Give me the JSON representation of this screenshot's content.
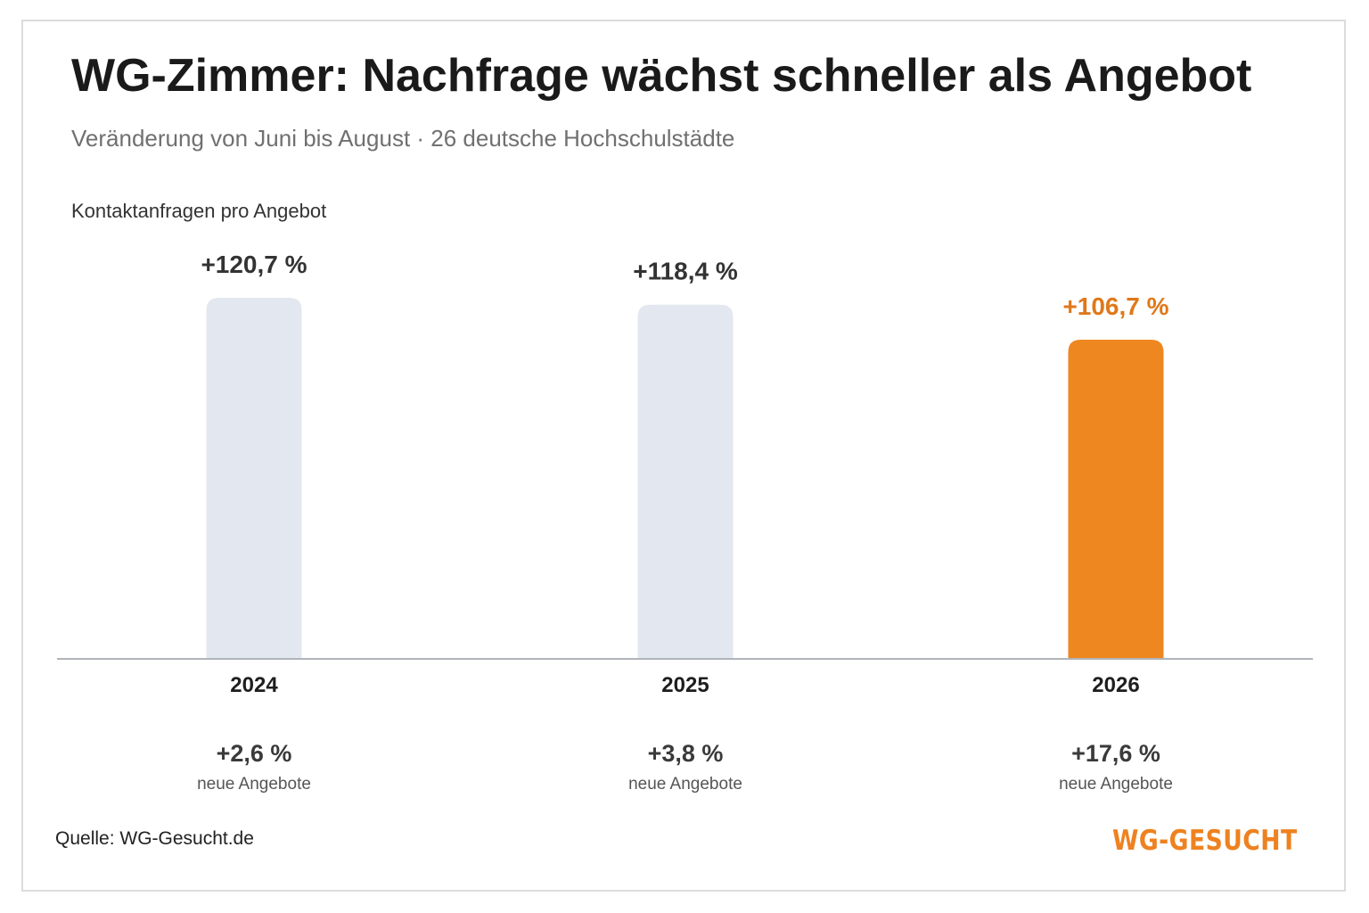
{
  "chart_data": {
    "type": "bar",
    "title": "WG-Zimmer: Nachfrage wächst schneller als Angebot",
    "subtitle": "Veränderung von Juni bis August · 26 deutsche Hochschulstädte",
    "ylabel": "Kontaktanfragen pro Angebot",
    "categories": [
      "2024",
      "2025",
      "2026"
    ],
    "values": [
      120.7,
      118.4,
      106.7
    ],
    "value_labels": [
      "+120,7 %",
      "+118,4 %",
      "+106,7 %"
    ],
    "highlight_index": 2,
    "secondary": {
      "label": "neue Angebote",
      "values": [
        2.6,
        3.8,
        17.6
      ],
      "value_labels": [
        "+2,6 %",
        "+3,8 %",
        "+17,6 %"
      ]
    },
    "colors": {
      "default_bar": "#e3e7ef",
      "highlight_bar": "#ee8720",
      "highlight_text": "#e0781a",
      "label_text": "#333333",
      "axis": "#b0b4bb"
    },
    "grid": false,
    "legend": "none"
  },
  "footer": {
    "source": "Quelle: WG-Gesucht.de",
    "logo": "WG-GESUCHT"
  }
}
